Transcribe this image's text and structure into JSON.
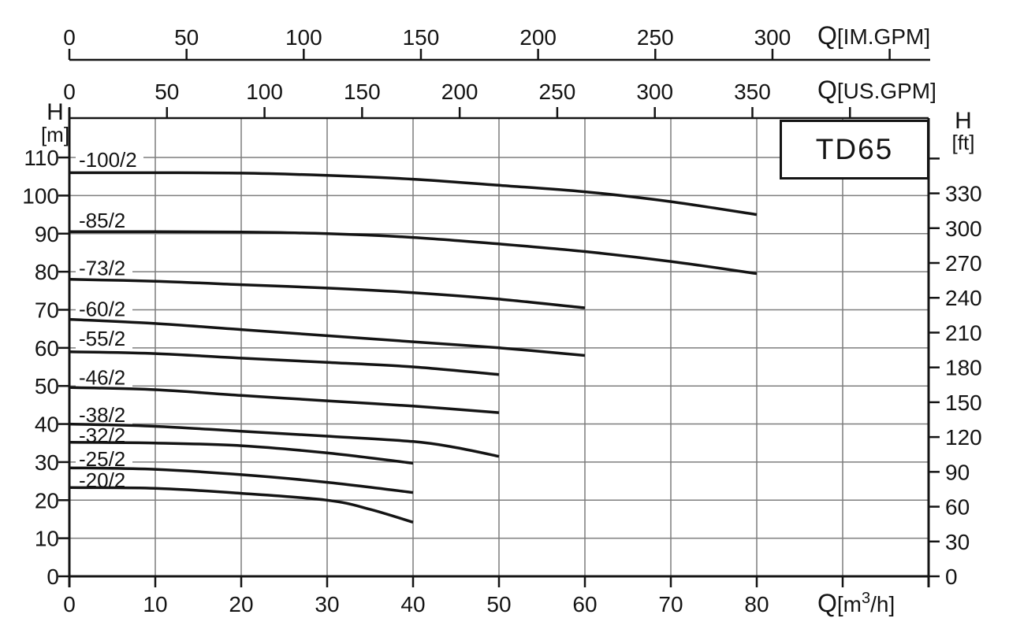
{
  "model_box": {
    "label": "TD65"
  },
  "chart_data": {
    "type": "line",
    "title": "TD65",
    "grid": {
      "x_step_m3h": 10,
      "y_step_m": 10,
      "visible": true
    },
    "xlim_m3h": [
      0,
      100
    ],
    "ylim_m": [
      0,
      120
    ],
    "x_axes": [
      {
        "id": "im_gpm",
        "label": "Q[IM.GPM]",
        "labeled_ticks": [
          0,
          50,
          100,
          150,
          200,
          250,
          300
        ],
        "unlabeled_ticks": [
          350
        ],
        "m3h_per_unit": 0.272766
      },
      {
        "id": "us_gpm",
        "label": "Q[US.GPM]",
        "labeled_ticks": [
          0,
          50,
          100,
          150,
          200,
          250,
          300,
          350
        ],
        "unlabeled_ticks": [
          400
        ],
        "m3h_per_unit": 0.227125
      },
      {
        "id": "m3h",
        "label_parts": {
          "pre": "Q[m",
          "sup": "3",
          "post": "/h]"
        },
        "label_plain": "Q[m³/h]",
        "labeled_ticks": [
          0,
          10,
          20,
          30,
          40,
          50,
          60,
          70,
          80
        ],
        "unlabeled_ticks": [
          90
        ]
      }
    ],
    "y_axes": [
      {
        "id": "meters",
        "side": "left",
        "title": "H",
        "unit": "[m]",
        "labeled_ticks": [
          110,
          100,
          90,
          80,
          70,
          60,
          50,
          40,
          30,
          20,
          10,
          0
        ],
        "unlabeled_ticks": []
      },
      {
        "id": "feet",
        "side": "right",
        "title": "H",
        "unit": "[ft]",
        "labeled_ticks": [
          330,
          300,
          270,
          240,
          210,
          180,
          150,
          120,
          90,
          60,
          30,
          0
        ],
        "unlabeled_ticks": [
          360
        ],
        "m_per_unit": 0.3048
      }
    ],
    "series": [
      {
        "name": "-100/2",
        "label_at_m": 109.4,
        "points": [
          [
            0,
            106
          ],
          [
            10,
            106
          ],
          [
            20,
            105.9
          ],
          [
            30,
            105.3
          ],
          [
            40,
            104.3
          ],
          [
            50,
            102.7
          ],
          [
            60,
            101
          ],
          [
            70,
            98.4
          ],
          [
            80,
            95
          ]
        ]
      },
      {
        "name": "-85/2",
        "label_at_m": 93.5,
        "points": [
          [
            0,
            90.5
          ],
          [
            10,
            90.5
          ],
          [
            20,
            90.4
          ],
          [
            30,
            90
          ],
          [
            40,
            89
          ],
          [
            50,
            87.3
          ],
          [
            60,
            85.3
          ],
          [
            70,
            82.7
          ],
          [
            80,
            79.5
          ]
        ]
      },
      {
        "name": "-73/2",
        "label_at_m": 81.0,
        "points": [
          [
            0,
            78
          ],
          [
            10,
            77.5
          ],
          [
            20,
            76.6
          ],
          [
            30,
            75.7
          ],
          [
            40,
            74.5
          ],
          [
            50,
            72.8
          ],
          [
            60,
            70.5
          ]
        ]
      },
      {
        "name": "-60/2",
        "label_at_m": 70.2,
        "points": [
          [
            0,
            67.5
          ],
          [
            10,
            66.4
          ],
          [
            20,
            64.8
          ],
          [
            30,
            63.2
          ],
          [
            40,
            61.6
          ],
          [
            50,
            60
          ],
          [
            60,
            58
          ]
        ]
      },
      {
        "name": "-55/2",
        "label_at_m": 62.4,
        "points": [
          [
            0,
            59
          ],
          [
            10,
            58.5
          ],
          [
            20,
            57.3
          ],
          [
            30,
            56.2
          ],
          [
            40,
            55
          ],
          [
            50,
            53
          ]
        ]
      },
      {
        "name": "-46/2",
        "label_at_m": 52.2,
        "points": [
          [
            0,
            49.6
          ],
          [
            10,
            49
          ],
          [
            20,
            47.5
          ],
          [
            30,
            46.1
          ],
          [
            40,
            44.7
          ],
          [
            50,
            43
          ]
        ]
      },
      {
        "name": "-38/2",
        "label_at_m": 42.4,
        "points": [
          [
            0,
            40
          ],
          [
            10,
            39.4
          ],
          [
            20,
            38.1
          ],
          [
            30,
            36.8
          ],
          [
            40,
            35.4
          ],
          [
            45,
            33.8
          ],
          [
            50,
            31.5
          ]
        ]
      },
      {
        "name": "-32/2",
        "label_at_m": 37.0,
        "points": [
          [
            0,
            35.2
          ],
          [
            10,
            35
          ],
          [
            20,
            34.3
          ],
          [
            30,
            32.4
          ],
          [
            40,
            29.7
          ]
        ]
      },
      {
        "name": "-25/2",
        "label_at_m": 30.8,
        "points": [
          [
            0,
            28.5
          ],
          [
            10,
            28.1
          ],
          [
            20,
            26.7
          ],
          [
            30,
            24.7
          ],
          [
            40,
            22
          ]
        ]
      },
      {
        "name": "-20/2",
        "label_at_m": 25.2,
        "points": [
          [
            0,
            23.3
          ],
          [
            10,
            23.1
          ],
          [
            20,
            21.8
          ],
          [
            30,
            20
          ],
          [
            35,
            17.6
          ],
          [
            40,
            14.2
          ]
        ]
      }
    ],
    "colors": {
      "curve": "#141414",
      "axis": "#141414",
      "grid": "#7d7d7d",
      "background": "#ffffff"
    }
  }
}
